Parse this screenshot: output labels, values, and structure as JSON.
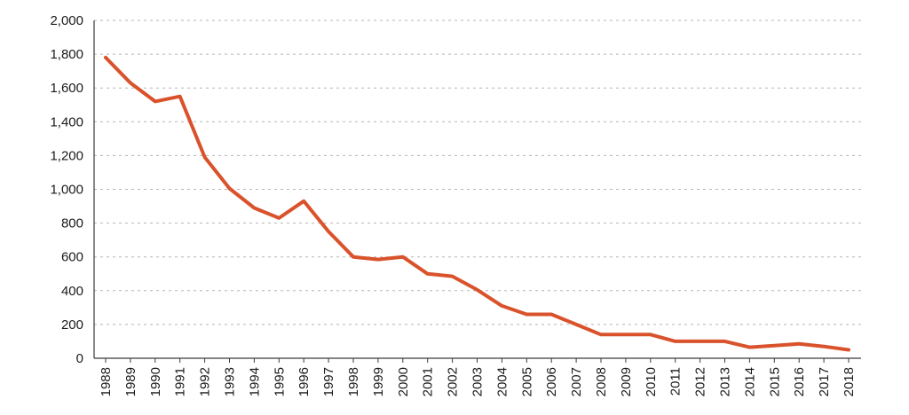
{
  "chart_data": {
    "type": "line",
    "title": "",
    "xlabel": "",
    "ylabel": "",
    "x": [
      "1988",
      "1989",
      "1990",
      "1991",
      "1992",
      "1993",
      "1994",
      "1995",
      "1996",
      "1997",
      "1998",
      "1999",
      "2000",
      "2001",
      "2002",
      "2003",
      "2004",
      "2005",
      "2006",
      "2007",
      "2008",
      "2009",
      "2010",
      "2011",
      "2012",
      "2013",
      "2014",
      "2015",
      "2016",
      "2017",
      "2018"
    ],
    "series": [
      {
        "values": [
          1780,
          1630,
          1520,
          1550,
          1190,
          1005,
          890,
          830,
          930,
          750,
          600,
          585,
          600,
          500,
          485,
          405,
          310,
          260,
          260,
          200,
          140,
          140,
          140,
          100,
          100,
          100,
          65,
          75,
          85,
          70,
          50
        ],
        "color": "#d9522b"
      }
    ],
    "ylim": [
      0,
      2000
    ],
    "yticks": [
      0,
      200,
      400,
      600,
      800,
      1000,
      1200,
      1400,
      1600,
      1800,
      2000
    ],
    "ytick_labels": [
      "0",
      "200",
      "400",
      "600",
      "800",
      "1,000",
      "1,200",
      "1,400",
      "1,600",
      "1,800",
      "2,000"
    ],
    "grid": true,
    "legend": "none"
  }
}
